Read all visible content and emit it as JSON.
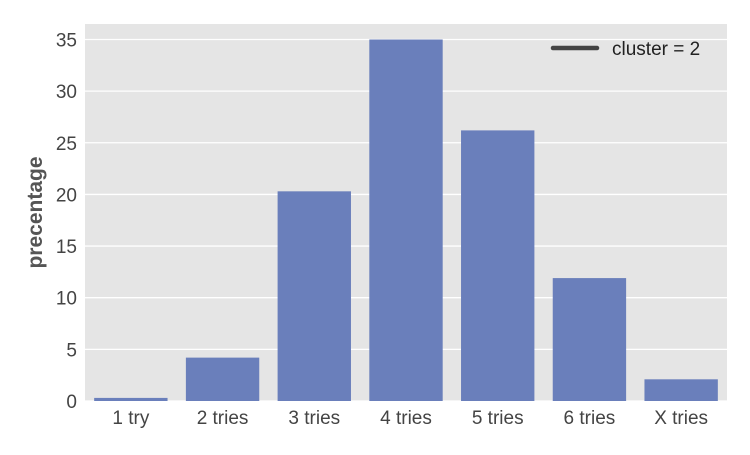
{
  "chart_data": {
    "type": "bar",
    "categories": [
      "1 try",
      "2 tries",
      "3 tries",
      "4 tries",
      "5 tries",
      "6 tries",
      "X tries"
    ],
    "series": [
      {
        "name": "cluster = 2",
        "values": [
          0.3,
          4.2,
          20.3,
          35.0,
          26.2,
          11.9,
          2.1
        ]
      }
    ],
    "title": "",
    "xlabel": "",
    "ylabel": "precentage",
    "ylim": [
      0,
      36.5
    ],
    "yticks": [
      0,
      5,
      10,
      15,
      20,
      25,
      30,
      35
    ],
    "grid": true,
    "legend_position": "top-right"
  },
  "colors": {
    "bar": "#6a7fbb",
    "plot_background": "#e5e5e5",
    "grid": "#ffffff",
    "legend_line": "#444444"
  }
}
